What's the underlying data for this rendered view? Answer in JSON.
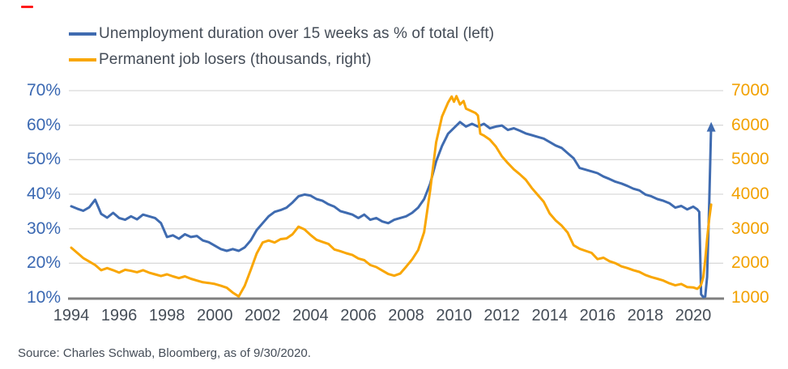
{
  "decoration": {
    "red_mark_present": true
  },
  "legend": {
    "items": [
      {
        "label": "Unemployment duration over 15 weeks as % of total (left)",
        "color": "#3f6bb0"
      },
      {
        "label": "Permanent job losers (thousands, right)",
        "color": "#f9a602"
      }
    ]
  },
  "source": {
    "text": "Source: Charles Schwab, Bloomberg, as of 9/30/2020."
  },
  "colors": {
    "grid": "#dadada",
    "axis_line": "#7f7f7f",
    "text": "#454d57",
    "left_axis_labels": "#3a68b2",
    "right_axis_labels": "#f2a100"
  },
  "chart_data": {
    "type": "line",
    "title": "",
    "grid": true,
    "legend_position": "top-left",
    "x_tick_labels": [
      "1994",
      "1996",
      "1998",
      "2000",
      "2002",
      "2004",
      "2006",
      "2008",
      "2010",
      "2012",
      "2014",
      "2016",
      "2018",
      "2020"
    ],
    "x_range": [
      1994,
      2020.75
    ],
    "left_axis": {
      "ticks": [
        "70%",
        "60%",
        "50%",
        "40%",
        "30%",
        "20%",
        "10%"
      ],
      "range": [
        10,
        70
      ],
      "color": "#3a68b2"
    },
    "right_axis": {
      "ticks": [
        "7000",
        "6000",
        "5000",
        "4000",
        "3000",
        "2000",
        "1000"
      ],
      "range": [
        1000,
        7000
      ],
      "color": "#f2a100"
    },
    "series": [
      {
        "name": "Unemployment duration over 15 weeks as % of total",
        "axis": "left",
        "color": "#3f6bb0",
        "arrow_end": true,
        "points": [
          [
            1994,
            36.5
          ],
          [
            1994.25,
            35.8
          ],
          [
            1994.5,
            35.2
          ],
          [
            1994.75,
            36.2
          ],
          [
            1995,
            38.4
          ],
          [
            1995.25,
            34.3
          ],
          [
            1995.5,
            33.2
          ],
          [
            1995.75,
            34.6
          ],
          [
            1996,
            33.1
          ],
          [
            1996.25,
            32.6
          ],
          [
            1996.5,
            33.6
          ],
          [
            1996.75,
            32.7
          ],
          [
            1997,
            34.1
          ],
          [
            1997.25,
            33.6
          ],
          [
            1997.5,
            33.1
          ],
          [
            1997.75,
            31.6
          ],
          [
            1998,
            27.6
          ],
          [
            1998.25,
            28.1
          ],
          [
            1998.5,
            27.1
          ],
          [
            1998.75,
            28.4
          ],
          [
            1999,
            27.6
          ],
          [
            1999.25,
            27.9
          ],
          [
            1999.5,
            26.6
          ],
          [
            1999.75,
            26.1
          ],
          [
            2000,
            25.1
          ],
          [
            2000.25,
            24.1
          ],
          [
            2000.5,
            23.6
          ],
          [
            2000.75,
            24.1
          ],
          [
            2001,
            23.6
          ],
          [
            2001.25,
            24.6
          ],
          [
            2001.5,
            26.6
          ],
          [
            2001.75,
            29.6
          ],
          [
            2002,
            31.6
          ],
          [
            2002.25,
            33.6
          ],
          [
            2002.5,
            34.9
          ],
          [
            2002.75,
            35.4
          ],
          [
            2003,
            36.1
          ],
          [
            2003.25,
            37.6
          ],
          [
            2003.5,
            39.4
          ],
          [
            2003.75,
            39.9
          ],
          [
            2004,
            39.6
          ],
          [
            2004.25,
            38.6
          ],
          [
            2004.5,
            38.1
          ],
          [
            2004.75,
            37.1
          ],
          [
            2005,
            36.4
          ],
          [
            2005.25,
            35.1
          ],
          [
            2005.5,
            34.6
          ],
          [
            2005.75,
            34.1
          ],
          [
            2006,
            33.1
          ],
          [
            2006.25,
            34.1
          ],
          [
            2006.5,
            32.6
          ],
          [
            2006.75,
            33.1
          ],
          [
            2007,
            32.1
          ],
          [
            2007.25,
            31.6
          ],
          [
            2007.5,
            32.6
          ],
          [
            2007.75,
            33.1
          ],
          [
            2008,
            33.6
          ],
          [
            2008.25,
            34.6
          ],
          [
            2008.5,
            36.1
          ],
          [
            2008.75,
            38.6
          ],
          [
            2009,
            43.0
          ],
          [
            2009.25,
            49.5
          ],
          [
            2009.5,
            54.0
          ],
          [
            2009.75,
            57.5
          ],
          [
            2010,
            59.2
          ],
          [
            2010.25,
            60.9
          ],
          [
            2010.5,
            59.6
          ],
          [
            2010.75,
            60.4
          ],
          [
            2011,
            59.6
          ],
          [
            2011.25,
            60.4
          ],
          [
            2011.5,
            59.1
          ],
          [
            2011.75,
            59.6
          ],
          [
            2012,
            59.9
          ],
          [
            2012.25,
            58.6
          ],
          [
            2012.5,
            59.1
          ],
          [
            2012.75,
            58.4
          ],
          [
            2013,
            57.6
          ],
          [
            2013.25,
            57.1
          ],
          [
            2013.5,
            56.6
          ],
          [
            2013.75,
            56.1
          ],
          [
            2014,
            55.1
          ],
          [
            2014.25,
            54.1
          ],
          [
            2014.5,
            53.4
          ],
          [
            2014.75,
            51.9
          ],
          [
            2015,
            50.4
          ],
          [
            2015.25,
            47.6
          ],
          [
            2015.5,
            47.1
          ],
          [
            2015.75,
            46.6
          ],
          [
            2016,
            46.1
          ],
          [
            2016.25,
            45.1
          ],
          [
            2016.5,
            44.4
          ],
          [
            2016.75,
            43.6
          ],
          [
            2017,
            43.1
          ],
          [
            2017.25,
            42.4
          ],
          [
            2017.5,
            41.6
          ],
          [
            2017.75,
            41.1
          ],
          [
            2018,
            39.9
          ],
          [
            2018.25,
            39.4
          ],
          [
            2018.5,
            38.6
          ],
          [
            2018.75,
            38.1
          ],
          [
            2019,
            37.4
          ],
          [
            2019.25,
            36.1
          ],
          [
            2019.5,
            36.6
          ],
          [
            2019.75,
            35.6
          ],
          [
            2020,
            36.4
          ],
          [
            2020.17,
            35.6
          ],
          [
            2020.25,
            34.9
          ],
          [
            2020.33,
            11.0
          ],
          [
            2020.42,
            10.2
          ],
          [
            2020.5,
            10.4
          ],
          [
            2020.58,
            16.0
          ],
          [
            2020.67,
            38.0
          ],
          [
            2020.75,
            60.0
          ]
        ]
      },
      {
        "name": "Permanent job losers (thousands)",
        "axis": "right",
        "color": "#f9a602",
        "arrow_end": false,
        "points": [
          [
            1994,
            2450
          ],
          [
            1994.25,
            2300
          ],
          [
            1994.5,
            2150
          ],
          [
            1994.75,
            2050
          ],
          [
            1995,
            1950
          ],
          [
            1995.25,
            1800
          ],
          [
            1995.5,
            1860
          ],
          [
            1995.75,
            1800
          ],
          [
            1996,
            1730
          ],
          [
            1996.25,
            1810
          ],
          [
            1996.5,
            1780
          ],
          [
            1996.75,
            1740
          ],
          [
            1997,
            1800
          ],
          [
            1997.25,
            1730
          ],
          [
            1997.5,
            1680
          ],
          [
            1997.75,
            1630
          ],
          [
            1998,
            1680
          ],
          [
            1998.25,
            1620
          ],
          [
            1998.5,
            1570
          ],
          [
            1998.75,
            1620
          ],
          [
            1999,
            1550
          ],
          [
            1999.25,
            1500
          ],
          [
            1999.5,
            1450
          ],
          [
            1999.75,
            1430
          ],
          [
            2000,
            1400
          ],
          [
            2000.25,
            1350
          ],
          [
            2000.5,
            1290
          ],
          [
            2000.75,
            1150
          ],
          [
            2001,
            1040
          ],
          [
            2001.25,
            1350
          ],
          [
            2001.5,
            1800
          ],
          [
            2001.75,
            2280
          ],
          [
            2002,
            2600
          ],
          [
            2002.25,
            2660
          ],
          [
            2002.5,
            2600
          ],
          [
            2002.75,
            2700
          ],
          [
            2003,
            2720
          ],
          [
            2003.25,
            2840
          ],
          [
            2003.5,
            3060
          ],
          [
            2003.75,
            2980
          ],
          [
            2004,
            2820
          ],
          [
            2004.25,
            2680
          ],
          [
            2004.5,
            2620
          ],
          [
            2004.75,
            2560
          ],
          [
            2005,
            2400
          ],
          [
            2005.25,
            2350
          ],
          [
            2005.5,
            2290
          ],
          [
            2005.75,
            2240
          ],
          [
            2006,
            2140
          ],
          [
            2006.25,
            2090
          ],
          [
            2006.5,
            1950
          ],
          [
            2006.75,
            1890
          ],
          [
            2007,
            1790
          ],
          [
            2007.25,
            1690
          ],
          [
            2007.5,
            1640
          ],
          [
            2007.75,
            1700
          ],
          [
            2008,
            1900
          ],
          [
            2008.25,
            2110
          ],
          [
            2008.5,
            2380
          ],
          [
            2008.75,
            2900
          ],
          [
            2009,
            4100
          ],
          [
            2009.25,
            5500
          ],
          [
            2009.5,
            6250
          ],
          [
            2009.75,
            6650
          ],
          [
            2009.9,
            6830
          ],
          [
            2010,
            6680
          ],
          [
            2010.1,
            6840
          ],
          [
            2010.25,
            6600
          ],
          [
            2010.4,
            6700
          ],
          [
            2010.5,
            6480
          ],
          [
            2010.75,
            6400
          ],
          [
            2010.9,
            6350
          ],
          [
            2011,
            6280
          ],
          [
            2011.1,
            5750
          ],
          [
            2011.25,
            5700
          ],
          [
            2011.5,
            5580
          ],
          [
            2011.75,
            5380
          ],
          [
            2012,
            5100
          ],
          [
            2012.25,
            4900
          ],
          [
            2012.5,
            4720
          ],
          [
            2012.75,
            4580
          ],
          [
            2013,
            4420
          ],
          [
            2013.25,
            4180
          ],
          [
            2013.5,
            3980
          ],
          [
            2013.75,
            3780
          ],
          [
            2014,
            3440
          ],
          [
            2014.25,
            3240
          ],
          [
            2014.5,
            3090
          ],
          [
            2014.75,
            2890
          ],
          [
            2015,
            2520
          ],
          [
            2015.25,
            2420
          ],
          [
            2015.5,
            2360
          ],
          [
            2015.75,
            2300
          ],
          [
            2016,
            2120
          ],
          [
            2016.25,
            2160
          ],
          [
            2016.5,
            2060
          ],
          [
            2016.75,
            2000
          ],
          [
            2017,
            1910
          ],
          [
            2017.25,
            1860
          ],
          [
            2017.5,
            1800
          ],
          [
            2017.75,
            1750
          ],
          [
            2018,
            1660
          ],
          [
            2018.25,
            1600
          ],
          [
            2018.5,
            1550
          ],
          [
            2018.75,
            1500
          ],
          [
            2019,
            1420
          ],
          [
            2019.25,
            1360
          ],
          [
            2019.5,
            1400
          ],
          [
            2019.75,
            1310
          ],
          [
            2020,
            1300
          ],
          [
            2020.17,
            1260
          ],
          [
            2020.25,
            1310
          ],
          [
            2020.33,
            1380
          ],
          [
            2020.42,
            1600
          ],
          [
            2020.5,
            2100
          ],
          [
            2020.58,
            2700
          ],
          [
            2020.67,
            3300
          ],
          [
            2020.75,
            3700
          ]
        ]
      }
    ]
  }
}
